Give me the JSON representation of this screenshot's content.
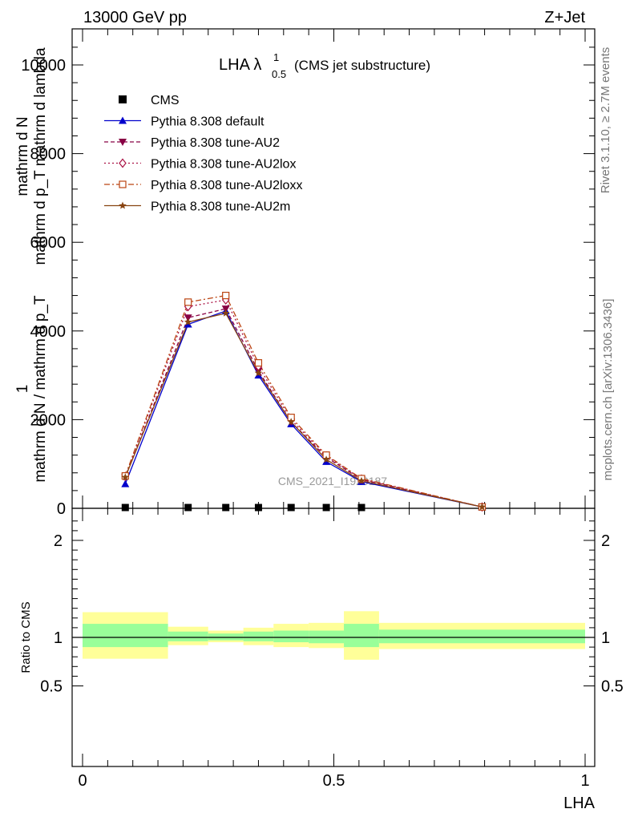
{
  "header": {
    "left": "13000 GeV pp",
    "right": "Z+Jet"
  },
  "side_labels": {
    "rivet": "Rivet 3.1.10, ≥ 2.7M events",
    "mcplots": "mcplots.cern.ch [arXiv:1306.3436]"
  },
  "watermark": "CMS_2021_I1920187",
  "chart_data": [
    {
      "type": "line",
      "title_main": "LHA λ",
      "title_sup": "1",
      "title_sub": "0.5",
      "title_rest": "(CMS jet substructure)",
      "ylabel_top": "mathrm d N",
      "ylabel_mid": "mathrm d p_T mathrm d lambda",
      "ylabel_one": "1",
      "ylabel_bot": "mathrm d N / mathrm d p_T",
      "xlim": [
        0,
        1
      ],
      "ylim": [
        0,
        10800
      ],
      "y_ticks": [
        0,
        2000,
        4000,
        6000,
        8000,
        10000
      ],
      "y_tick_labels": [
        "0",
        "2000",
        "4000",
        "6000",
        "8000",
        "10000"
      ],
      "legend_position": "top-left",
      "series": [
        {
          "name": "CMS",
          "color": "#000000",
          "marker": "square",
          "dash": "",
          "x": [
            0.085,
            0.21,
            0.285,
            0.35,
            0.415,
            0.485,
            0.555
          ],
          "y": [
            0,
            0,
            0,
            0,
            0,
            0,
            0
          ]
        },
        {
          "name": "Pythia 8.308 default",
          "color": "#0000cc",
          "marker": "triangle-up",
          "dash": "",
          "x": [
            0.085,
            0.21,
            0.285,
            0.35,
            0.415,
            0.485,
            0.555,
            0.795
          ],
          "y": [
            550,
            4150,
            4450,
            3000,
            1900,
            1050,
            600,
            30
          ]
        },
        {
          "name": "Pythia 8.308 tune-AU2",
          "color": "#880044",
          "marker": "triangle-down",
          "dash": "5,3",
          "x": [
            0.085,
            0.21,
            0.285,
            0.35,
            0.415,
            0.485,
            0.555,
            0.795
          ],
          "y": [
            700,
            4300,
            4500,
            3100,
            1950,
            1150,
            650,
            30
          ]
        },
        {
          "name": "Pythia 8.308 tune-AU2lox",
          "color": "#aa1144",
          "marker": "diamond",
          "dash": "2,3",
          "x": [
            0.085,
            0.21,
            0.285,
            0.35,
            0.415,
            0.485,
            0.555,
            0.795
          ],
          "y": [
            720,
            4550,
            4700,
            3200,
            2000,
            1180,
            660,
            30
          ]
        },
        {
          "name": "Pythia 8.308 tune-AU2loxx",
          "color": "#bb4411",
          "marker": "square-open",
          "dash": "7,3,2,3",
          "x": [
            0.085,
            0.21,
            0.285,
            0.35,
            0.415,
            0.485,
            0.555,
            0.795
          ],
          "y": [
            730,
            4650,
            4800,
            3280,
            2050,
            1200,
            670,
            30
          ]
        },
        {
          "name": "Pythia 8.308 tune-AU2m",
          "color": "#884411",
          "marker": "star",
          "dash": "",
          "x": [
            0.085,
            0.21,
            0.285,
            0.35,
            0.415,
            0.485,
            0.555,
            0.795
          ],
          "y": [
            700,
            4200,
            4400,
            3050,
            1950,
            1100,
            620,
            30
          ]
        }
      ]
    },
    {
      "type": "area",
      "ylabel": "Ratio to CMS",
      "xlabel": "LHA",
      "xlim": [
        0,
        1
      ],
      "ylim": [
        0.4,
        2.3
      ],
      "y_ticks": [
        0.5,
        1,
        2
      ],
      "y_tick_labels": [
        "0.5",
        "1",
        "2"
      ],
      "x_ticks": [
        0,
        0.5,
        1
      ],
      "x_tick_labels": [
        "0",
        "0.5",
        "1"
      ],
      "bins": [
        0,
        0.17,
        0.25,
        0.32,
        0.38,
        0.45,
        0.52,
        0.59,
        1.0
      ],
      "band_outer_low": [
        0.78,
        0.92,
        0.95,
        0.92,
        0.9,
        0.89,
        0.77,
        0.88
      ],
      "band_outer_high": [
        1.26,
        1.11,
        1.07,
        1.1,
        1.14,
        1.15,
        1.27,
        1.15
      ],
      "band_inner_low": [
        0.9,
        0.96,
        0.97,
        0.96,
        0.95,
        0.94,
        0.9,
        0.94
      ],
      "band_inner_high": [
        1.14,
        1.06,
        1.04,
        1.06,
        1.07,
        1.07,
        1.14,
        1.08
      ],
      "outer_color": "#ffff99",
      "inner_color": "#99ff99",
      "reference": 1
    }
  ]
}
